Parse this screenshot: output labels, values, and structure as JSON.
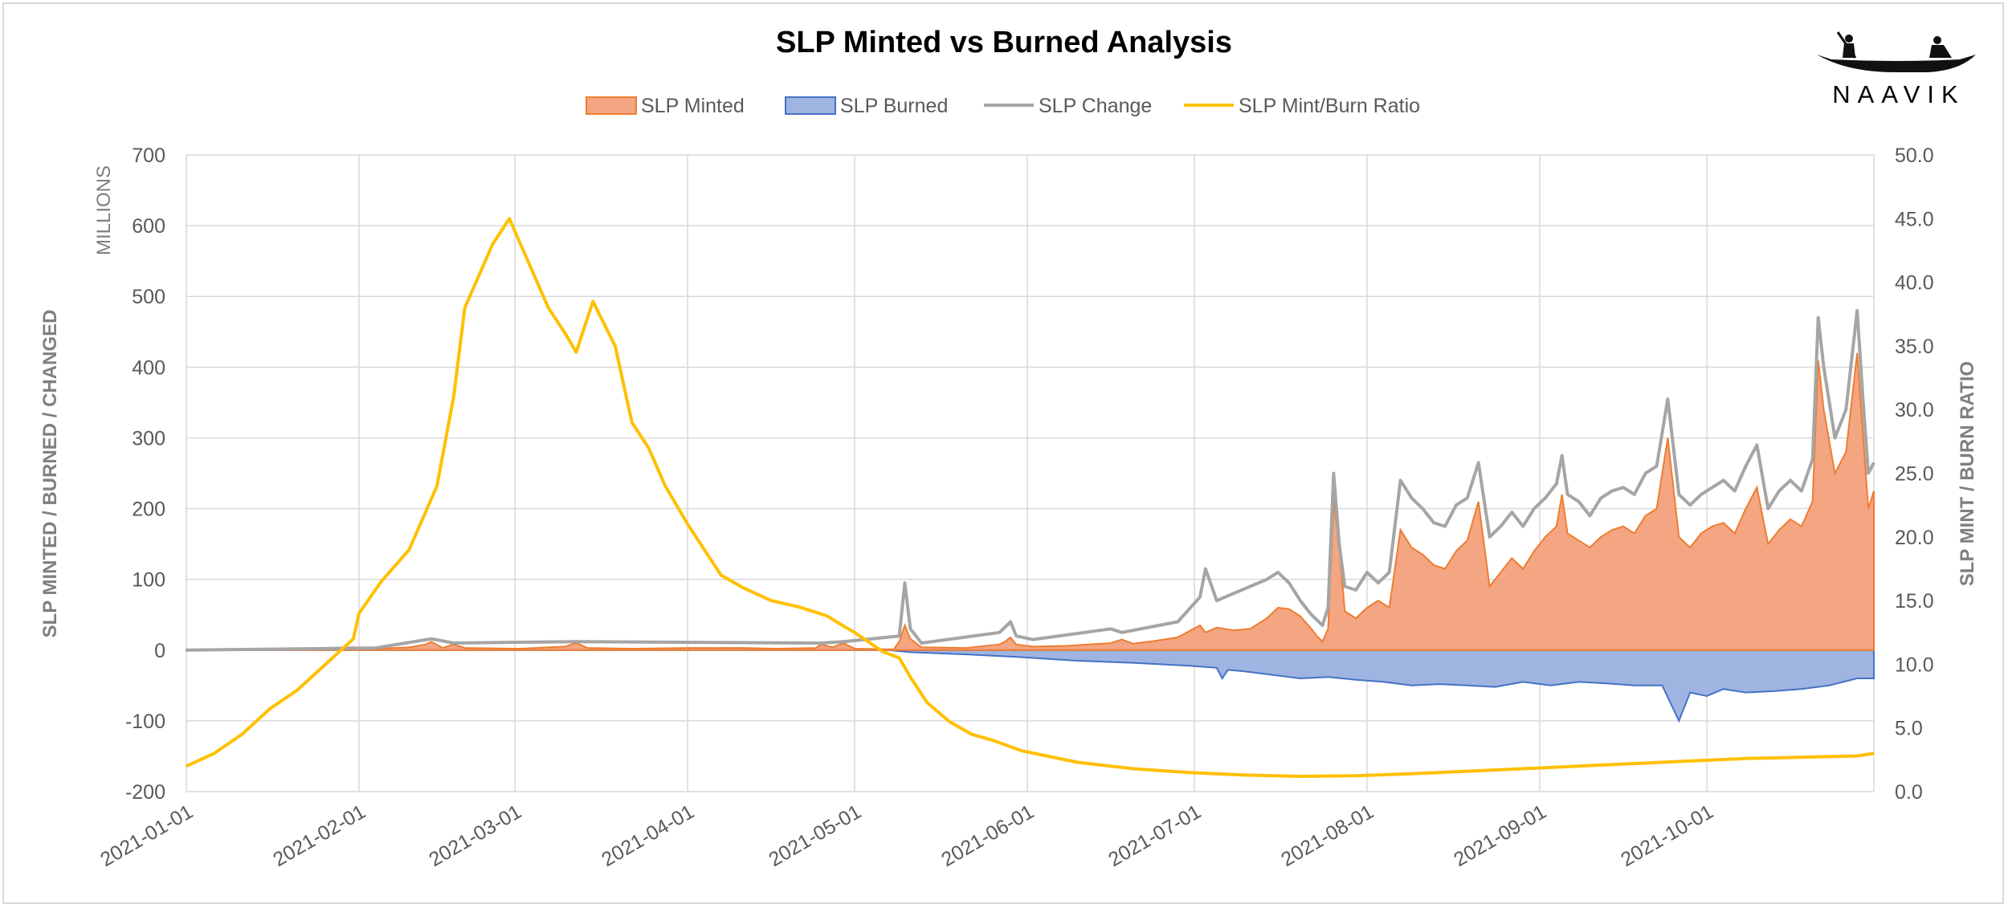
{
  "chart_data": {
    "type": "area",
    "title": "SLP Minted vs Burned Analysis",
    "left_axis_title": "SLP MINTED / BURNED / CHANGED",
    "left_axis_unit": "MILLIONS",
    "right_axis_title": "SLP MINT / BURN RATIO",
    "logo_text": "NAAVIK",
    "x_ticks": [
      "2021-01-01",
      "2021-02-01",
      "2021-03-01",
      "2021-04-01",
      "2021-05-01",
      "2021-06-01",
      "2021-07-01",
      "2021-08-01",
      "2021-09-01",
      "2021-10-01"
    ],
    "x_tick_days": [
      0,
      31,
      59,
      90,
      120,
      151,
      181,
      212,
      243,
      273
    ],
    "x_range_days": [
      0,
      303
    ],
    "ylim_left": [
      -200,
      700
    ],
    "y_ticks_left": [
      "700",
      "600",
      "500",
      "400",
      "300",
      "200",
      "100",
      "0",
      "-100",
      "-200"
    ],
    "ylim_right": [
      0,
      50
    ],
    "y_ticks_right": [
      "50.0",
      "45.0",
      "40.0",
      "35.0",
      "30.0",
      "25.0",
      "20.0",
      "15.0",
      "10.0",
      "5.0",
      "0.0"
    ],
    "grid": true,
    "legend_position": "top",
    "legend": [
      {
        "label": "SLP Minted",
        "kind": "area",
        "color": "#f4a582",
        "stroke": "#ed7d31"
      },
      {
        "label": "SLP Burned",
        "kind": "area",
        "color": "#9fb4e0",
        "stroke": "#4472c4"
      },
      {
        "label": "SLP Change",
        "kind": "line",
        "color": "#a5a5a5"
      },
      {
        "label": "SLP Mint/Burn Ratio",
        "kind": "line",
        "color": "#ffc000"
      }
    ],
    "series": [
      {
        "name": "SLP Minted",
        "axis": "left",
        "points": [
          [
            0,
            0
          ],
          [
            10,
            1
          ],
          [
            20,
            2
          ],
          [
            30,
            4
          ],
          [
            34,
            2
          ],
          [
            40,
            4
          ],
          [
            43,
            8
          ],
          [
            44,
            12
          ],
          [
            46,
            3
          ],
          [
            48,
            8
          ],
          [
            50,
            3
          ],
          [
            60,
            2
          ],
          [
            68,
            5
          ],
          [
            70,
            10
          ],
          [
            72,
            3
          ],
          [
            80,
            2
          ],
          [
            90,
            3
          ],
          [
            100,
            3
          ],
          [
            106,
            2
          ],
          [
            113,
            3
          ],
          [
            114,
            8
          ],
          [
            116,
            4
          ],
          [
            118,
            10
          ],
          [
            120,
            2
          ],
          [
            127,
            1
          ],
          [
            128,
            12
          ],
          [
            129,
            35
          ],
          [
            130,
            16
          ],
          [
            132,
            4
          ],
          [
            140,
            3
          ],
          [
            146,
            8
          ],
          [
            147,
            12
          ],
          [
            148,
            18
          ],
          [
            149,
            8
          ],
          [
            152,
            5
          ],
          [
            158,
            6
          ],
          [
            162,
            8
          ],
          [
            166,
            10
          ],
          [
            168,
            15
          ],
          [
            170,
            9
          ],
          [
            174,
            13
          ],
          [
            178,
            18
          ],
          [
            182,
            35
          ],
          [
            183,
            25
          ],
          [
            185,
            32
          ],
          [
            188,
            28
          ],
          [
            191,
            30
          ],
          [
            194,
            45
          ],
          [
            196,
            60
          ],
          [
            198,
            58
          ],
          [
            200,
            48
          ],
          [
            202,
            30
          ],
          [
            203,
            20
          ],
          [
            204,
            12
          ],
          [
            205,
            30
          ],
          [
            206,
            210
          ],
          [
            207,
            150
          ],
          [
            208,
            55
          ],
          [
            210,
            45
          ],
          [
            212,
            60
          ],
          [
            214,
            70
          ],
          [
            216,
            60
          ],
          [
            218,
            170
          ],
          [
            220,
            145
          ],
          [
            222,
            135
          ],
          [
            224,
            120
          ],
          [
            226,
            115
          ],
          [
            228,
            140
          ],
          [
            230,
            155
          ],
          [
            232,
            210
          ],
          [
            234,
            90
          ],
          [
            236,
            110
          ],
          [
            238,
            130
          ],
          [
            240,
            115
          ],
          [
            242,
            140
          ],
          [
            244,
            160
          ],
          [
            246,
            175
          ],
          [
            247,
            220
          ],
          [
            248,
            165
          ],
          [
            250,
            155
          ],
          [
            252,
            145
          ],
          [
            254,
            160
          ],
          [
            256,
            170
          ],
          [
            258,
            175
          ],
          [
            260,
            165
          ],
          [
            262,
            190
          ],
          [
            264,
            200
          ],
          [
            266,
            300
          ],
          [
            268,
            160
          ],
          [
            270,
            145
          ],
          [
            272,
            165
          ],
          [
            274,
            175
          ],
          [
            276,
            180
          ],
          [
            278,
            165
          ],
          [
            280,
            200
          ],
          [
            282,
            230
          ],
          [
            284,
            150
          ],
          [
            286,
            170
          ],
          [
            288,
            185
          ],
          [
            290,
            175
          ],
          [
            292,
            210
          ],
          [
            293,
            410
          ],
          [
            294,
            340
          ],
          [
            296,
            250
          ],
          [
            298,
            280
          ],
          [
            300,
            420
          ],
          [
            301,
            310
          ],
          [
            302,
            200
          ],
          [
            303,
            225
          ]
        ],
        "note": "monthly pattern with periodic spikes"
      },
      {
        "name": "SLP Burned",
        "axis": "left",
        "points": [
          [
            0,
            0
          ],
          [
            126,
            0
          ],
          [
            130,
            -3
          ],
          [
            140,
            -6
          ],
          [
            150,
            -10
          ],
          [
            160,
            -15
          ],
          [
            170,
            -18
          ],
          [
            180,
            -22
          ],
          [
            185,
            -25
          ],
          [
            186,
            -40
          ],
          [
            187,
            -28
          ],
          [
            190,
            -30
          ],
          [
            195,
            -35
          ],
          [
            200,
            -40
          ],
          [
            205,
            -38
          ],
          [
            210,
            -42
          ],
          [
            215,
            -45
          ],
          [
            220,
            -50
          ],
          [
            225,
            -48
          ],
          [
            230,
            -50
          ],
          [
            235,
            -52
          ],
          [
            240,
            -45
          ],
          [
            245,
            -50
          ],
          [
            250,
            -45
          ],
          [
            255,
            -47
          ],
          [
            260,
            -50
          ],
          [
            265,
            -50
          ],
          [
            268,
            -100
          ],
          [
            270,
            -60
          ],
          [
            273,
            -65
          ],
          [
            276,
            -55
          ],
          [
            280,
            -60
          ],
          [
            285,
            -58
          ],
          [
            290,
            -55
          ],
          [
            295,
            -50
          ],
          [
            300,
            -40
          ],
          [
            303,
            -40
          ]
        ]
      },
      {
        "name": "SLP Change",
        "axis": "left",
        "points": [
          [
            0,
            0
          ],
          [
            34,
            3
          ],
          [
            44,
            16
          ],
          [
            48,
            10
          ],
          [
            70,
            12
          ],
          [
            114,
            10
          ],
          [
            118,
            12
          ],
          [
            128,
            20
          ],
          [
            129,
            95
          ],
          [
            130,
            30
          ],
          [
            132,
            10
          ],
          [
            146,
            25
          ],
          [
            148,
            40
          ],
          [
            149,
            20
          ],
          [
            152,
            15
          ],
          [
            166,
            30
          ],
          [
            168,
            25
          ],
          [
            178,
            40
          ],
          [
            182,
            75
          ],
          [
            183,
            115
          ],
          [
            185,
            70
          ],
          [
            188,
            80
          ],
          [
            191,
            90
          ],
          [
            194,
            100
          ],
          [
            196,
            110
          ],
          [
            198,
            95
          ],
          [
            200,
            70
          ],
          [
            202,
            50
          ],
          [
            204,
            35
          ],
          [
            205,
            60
          ],
          [
            206,
            250
          ],
          [
            207,
            150
          ],
          [
            208,
            90
          ],
          [
            210,
            85
          ],
          [
            212,
            110
          ],
          [
            214,
            95
          ],
          [
            216,
            110
          ],
          [
            218,
            240
          ],
          [
            220,
            215
          ],
          [
            222,
            200
          ],
          [
            224,
            180
          ],
          [
            226,
            175
          ],
          [
            228,
            205
          ],
          [
            230,
            215
          ],
          [
            232,
            265
          ],
          [
            234,
            160
          ],
          [
            236,
            175
          ],
          [
            238,
            195
          ],
          [
            240,
            175
          ],
          [
            242,
            200
          ],
          [
            244,
            215
          ],
          [
            246,
            235
          ],
          [
            247,
            275
          ],
          [
            248,
            220
          ],
          [
            250,
            210
          ],
          [
            252,
            190
          ],
          [
            254,
            215
          ],
          [
            256,
            225
          ],
          [
            258,
            230
          ],
          [
            260,
            220
          ],
          [
            262,
            250
          ],
          [
            264,
            260
          ],
          [
            266,
            355
          ],
          [
            268,
            220
          ],
          [
            270,
            205
          ],
          [
            272,
            220
          ],
          [
            274,
            230
          ],
          [
            276,
            240
          ],
          [
            278,
            225
          ],
          [
            280,
            260
          ],
          [
            282,
            290
          ],
          [
            284,
            200
          ],
          [
            286,
            225
          ],
          [
            288,
            240
          ],
          [
            290,
            225
          ],
          [
            292,
            270
          ],
          [
            293,
            470
          ],
          [
            294,
            400
          ],
          [
            296,
            300
          ],
          [
            298,
            340
          ],
          [
            300,
            480
          ],
          [
            301,
            360
          ],
          [
            302,
            250
          ],
          [
            303,
            265
          ]
        ]
      },
      {
        "name": "SLP Mint/Burn Ratio",
        "axis": "right",
        "points": [
          [
            0,
            2
          ],
          [
            5,
            3
          ],
          [
            10,
            4.5
          ],
          [
            15,
            6.5
          ],
          [
            20,
            8
          ],
          [
            25,
            10
          ],
          [
            30,
            12
          ],
          [
            31,
            14
          ],
          [
            35,
            16.5
          ],
          [
            40,
            19
          ],
          [
            45,
            24
          ],
          [
            48,
            31
          ],
          [
            50,
            38
          ],
          [
            55,
            43
          ],
          [
            58,
            45
          ],
          [
            60,
            43
          ],
          [
            63,
            40
          ],
          [
            65,
            38
          ],
          [
            68,
            36
          ],
          [
            70,
            34.5
          ],
          [
            73,
            38.5
          ],
          [
            77,
            35
          ],
          [
            80,
            29
          ],
          [
            83,
            27
          ],
          [
            86,
            24
          ],
          [
            90,
            21
          ],
          [
            93,
            19
          ],
          [
            96,
            17
          ],
          [
            100,
            16
          ],
          [
            105,
            15
          ],
          [
            110,
            14.5
          ],
          [
            115,
            13.8
          ],
          [
            118,
            13
          ],
          [
            120,
            12.5
          ],
          [
            125,
            11
          ],
          [
            128,
            10.5
          ],
          [
            130,
            9
          ],
          [
            133,
            7
          ],
          [
            137,
            5.5
          ],
          [
            141,
            4.5
          ],
          [
            145,
            4
          ],
          [
            150,
            3.2
          ],
          [
            160,
            2.3
          ],
          [
            170,
            1.8
          ],
          [
            180,
            1.5
          ],
          [
            190,
            1.3
          ],
          [
            200,
            1.2
          ],
          [
            210,
            1.25
          ],
          [
            220,
            1.4
          ],
          [
            230,
            1.6
          ],
          [
            240,
            1.8
          ],
          [
            250,
            2.0
          ],
          [
            260,
            2.2
          ],
          [
            270,
            2.4
          ],
          [
            280,
            2.6
          ],
          [
            290,
            2.7
          ],
          [
            300,
            2.8
          ],
          [
            303,
            3.0
          ]
        ]
      }
    ]
  }
}
